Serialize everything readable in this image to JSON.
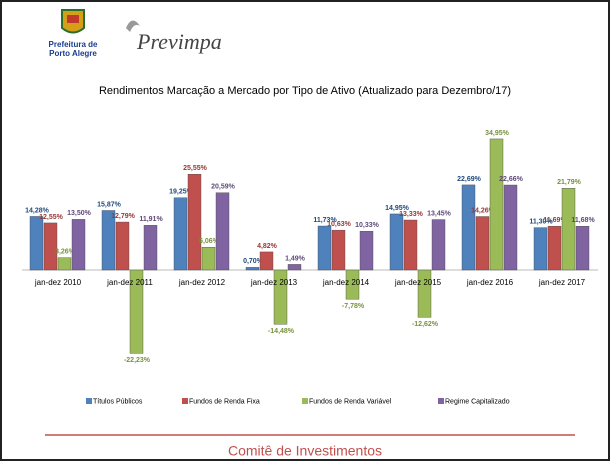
{
  "header": {
    "org_line1": "Prefeitura de",
    "org_line2": "Porto Alegre",
    "brand": "Previmpa"
  },
  "chart_data": {
    "type": "bar",
    "title": "Rendimentos Marcação a Mercado por Tipo de Ativo (Atualizado para Dezembro/17)",
    "categories": [
      "jan-dez 2010",
      "jan-dez 2011",
      "jan-dez 2012",
      "jan-dez 2013",
      "jan-dez 2014",
      "jan-dez 2015",
      "jan-dez 2016",
      "jan-dez 2017"
    ],
    "series": [
      {
        "name": "Títulos Públicos",
        "color": "#4f81bd",
        "label_color": "#1f497d",
        "values": [
          14.28,
          15.87,
          19.25,
          0.7,
          11.73,
          14.95,
          22.69,
          11.3
        ],
        "value_labels": [
          "14,28%",
          "15,87%",
          "19,25%",
          "0,70%",
          "11,73%",
          "14,95%",
          "22,69%",
          "11,30%"
        ]
      },
      {
        "name": "Fundos de Renda Fixa",
        "color": "#c0504d",
        "label_color": "#953735",
        "values": [
          12.55,
          12.79,
          25.55,
          4.82,
          10.63,
          13.33,
          14.26,
          11.69
        ],
        "value_labels": [
          "12,55%",
          "12,79%",
          "25,55%",
          "4,82%",
          "10,63%",
          "13,33%",
          "14,26%",
          "11,69%"
        ]
      },
      {
        "name": "Fundos de Renda Variável",
        "color": "#9bbb59",
        "label_color": "#76923c",
        "values": [
          3.26,
          -22.23,
          6.06,
          -14.48,
          -7.78,
          -12.62,
          34.95,
          21.79
        ],
        "value_labels": [
          "3,26%",
          "-22,23%",
          "6,06%",
          "-14,48%",
          "-7,78%",
          "-12,62%",
          "34,95%",
          "21,79%"
        ]
      },
      {
        "name": "Regime Capitalizado",
        "color": "#8064a2",
        "label_color": "#5f497a",
        "values": [
          13.5,
          11.91,
          20.59,
          1.49,
          10.33,
          13.45,
          22.66,
          11.68
        ],
        "value_labels": [
          "13,50%",
          "11,91%",
          "20,59%",
          "1,49%",
          "10,33%",
          "13,45%",
          "22,66%",
          "11,68%"
        ]
      }
    ],
    "legend": "bottom"
  },
  "footer": "Comitê de Investimentos"
}
